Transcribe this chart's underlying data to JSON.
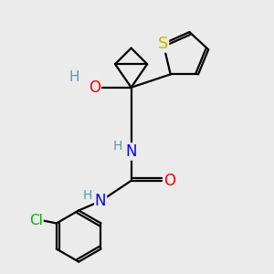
{
  "background_color": "#ebebeb",
  "bond_color": "#000000",
  "atom_colors": {
    "S": "#c8b400",
    "O": "#ff0000",
    "N": "#0000ff",
    "Cl": "#00b300",
    "H": "#5a9aaa",
    "C": "#000000"
  },
  "lw": 1.6,
  "figsize": [
    3.0,
    3.0
  ],
  "dpi": 100
}
